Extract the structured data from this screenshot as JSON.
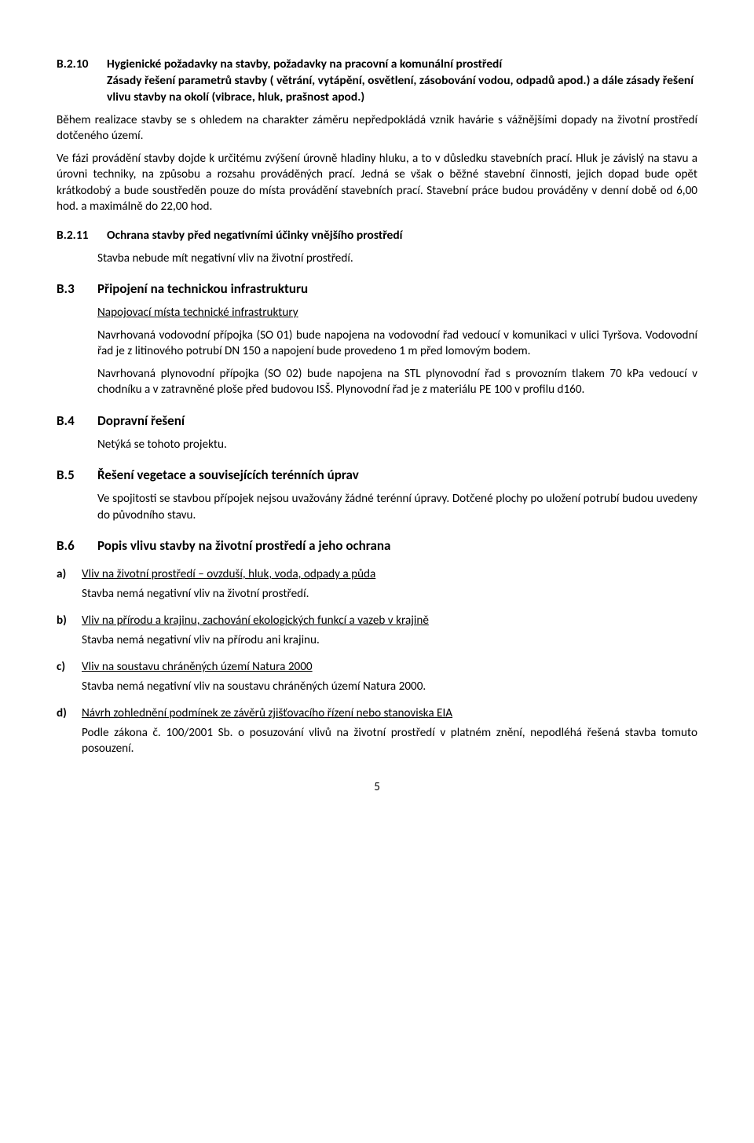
{
  "sec_b210": {
    "num": "B.2.10",
    "title": "Hygienické požadavky na stavby, požadavky na pracovní a komunální prostředí",
    "subtitle": "Zásady řešení parametrů stavby ( větrání, vytápění, osvětlení, zásobování vodou, odpadů apod.) a dále zásady řešení vlivu stavby na okolí (vibrace, hluk, prašnost apod.)",
    "p1": "Během realizace stavby se s ohledem na charakter záměru nepředpokládá vznik havárie s vážnějšími dopady na životní prostředí dotčeného území.",
    "p2": "Ve fázi provádění stavby dojde k určitému zvýšení úrovně hladiny hluku, a to v důsledku stavebních prací. Hluk je závislý na stavu a úrovni techniky, na způsobu a rozsahu prováděných prací. Jedná se však o běžné stavební činnosti, jejich dopad bude opět krátkodobý a bude soustředěn pouze do místa provádění stavebních prací. Stavební práce budou prováděny v denní době od 6,00 hod. a maximálně do 22,00 hod."
  },
  "sec_b211": {
    "num": "B.2.11",
    "title": "Ochrana stavby před negativními účinky vnějšího prostředí",
    "p1": "Stavba nebude mít negativní vliv na životní prostředí."
  },
  "sec_b3": {
    "num": "B.3",
    "title": "Připojení na technickou infrastrukturu",
    "sub": "Napojovací místa technické infrastruktury",
    "p1": "Navrhovaná vodovodní přípojka (SO 01) bude napojena na vodovodní řad vedoucí v komunikaci v ulici Tyršova. Vodovodní řad je z litinového potrubí DN 150 a napojení bude provedeno 1 m před lomovým bodem.",
    "p2": "Navrhovaná plynovodní přípojka (SO 02) bude napojena na STL plynovodní řad s provozním tlakem 70 kPa vedoucí v chodníku a v zatravněné ploše před budovou ISŠ. Plynovodní řad je z materiálu PE 100 v profilu d160."
  },
  "sec_b4": {
    "num": "B.4",
    "title": "Dopravní řešení",
    "p1": "Netýká se tohoto projektu."
  },
  "sec_b5": {
    "num": "B.5",
    "title": "Řešení vegetace a souvisejících terénních úprav",
    "p1": "Ve spojitosti se stavbou přípojek nejsou uvažovány žádné terénní úpravy. Dotčené plochy po uložení potrubí budou uvedeny do původního stavu."
  },
  "sec_b6": {
    "num": "B.6",
    "title": "Popis vlivu stavby na životní prostředí a jeho ochrana",
    "items": [
      {
        "label": "a)",
        "head": "Vliv na životní prostředí – ovzduší, hluk, voda, odpady a půda",
        "body": "Stavba nemá negativní vliv na životní prostředí."
      },
      {
        "label": "b)",
        "head": "Vliv na přírodu a krajinu, zachování ekologických funkcí a vazeb v krajině",
        "body": "Stavba nemá negativní vliv na přírodu ani krajinu."
      },
      {
        "label": "c)",
        "head": "Vliv na soustavu chráněných území Natura 2000",
        "body": "Stavba nemá negativní vliv na soustavu chráněných území Natura 2000."
      },
      {
        "label": "d)",
        "head": "Návrh zohlednění podmínek ze závěrů zjišťovacího řízení nebo stanoviska EIA",
        "body": "Podle zákona č. 100/2001 Sb. o posuzování vlivů na životní prostředí v platném znění, nepodléhá řešená stavba tomuto posouzení."
      }
    ]
  },
  "page_number": "5"
}
